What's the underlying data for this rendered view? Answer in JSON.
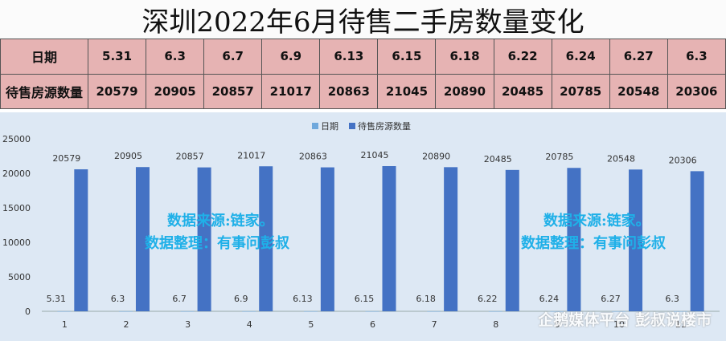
{
  "title": "深圳2022年6月待售二手房数量变化",
  "table": {
    "row1_header": "日期",
    "row2_header": "待售房源数量",
    "dates": [
      "5.31",
      "6.3",
      "6.7",
      "6.9",
      "6.13",
      "6.15",
      "6.18",
      "6.22",
      "6.24",
      "6.27",
      "6.3"
    ],
    "counts": [
      "20579",
      "20905",
      "20857",
      "21017",
      "20863",
      "21045",
      "20890",
      "20485",
      "20785",
      "20548",
      "20306"
    ]
  },
  "chart_data": {
    "type": "bar",
    "categories": [
      "1",
      "2",
      "3",
      "4",
      "5",
      "6",
      "7",
      "8",
      "9",
      "10",
      "11"
    ],
    "series": [
      {
        "name": "日期",
        "values": [
          5.31,
          6.3,
          6.7,
          6.9,
          6.13,
          6.15,
          6.18,
          6.22,
          6.24,
          6.27,
          6.3
        ],
        "color": "#6fa8dc"
      },
      {
        "name": "待售房源数量",
        "values": [
          20579,
          20905,
          20857,
          21017,
          20863,
          21045,
          20890,
          20485,
          20785,
          20548,
          20306
        ],
        "color": "#4472c4"
      }
    ],
    "series1_labels": [
      "5.31",
      "6.3",
      "6.7",
      "6.9",
      "6.13",
      "6.15",
      "6.18",
      "6.22",
      "6.24",
      "6.27",
      "6.3"
    ],
    "yticks": [
      0,
      5000,
      10000,
      15000,
      20000,
      25000
    ],
    "ylim": [
      0,
      25000
    ],
    "legend": "top-center",
    "grid": false
  },
  "watermarks": {
    "left_line1": "数据来源:链家。",
    "left_line2": "数据整理：有事问彭叔",
    "right_line1": "数据来源:链家。",
    "right_line2": "数据整理：有事问彭叔",
    "footer": "企鹅媒体平台 彭叔说楼市"
  }
}
